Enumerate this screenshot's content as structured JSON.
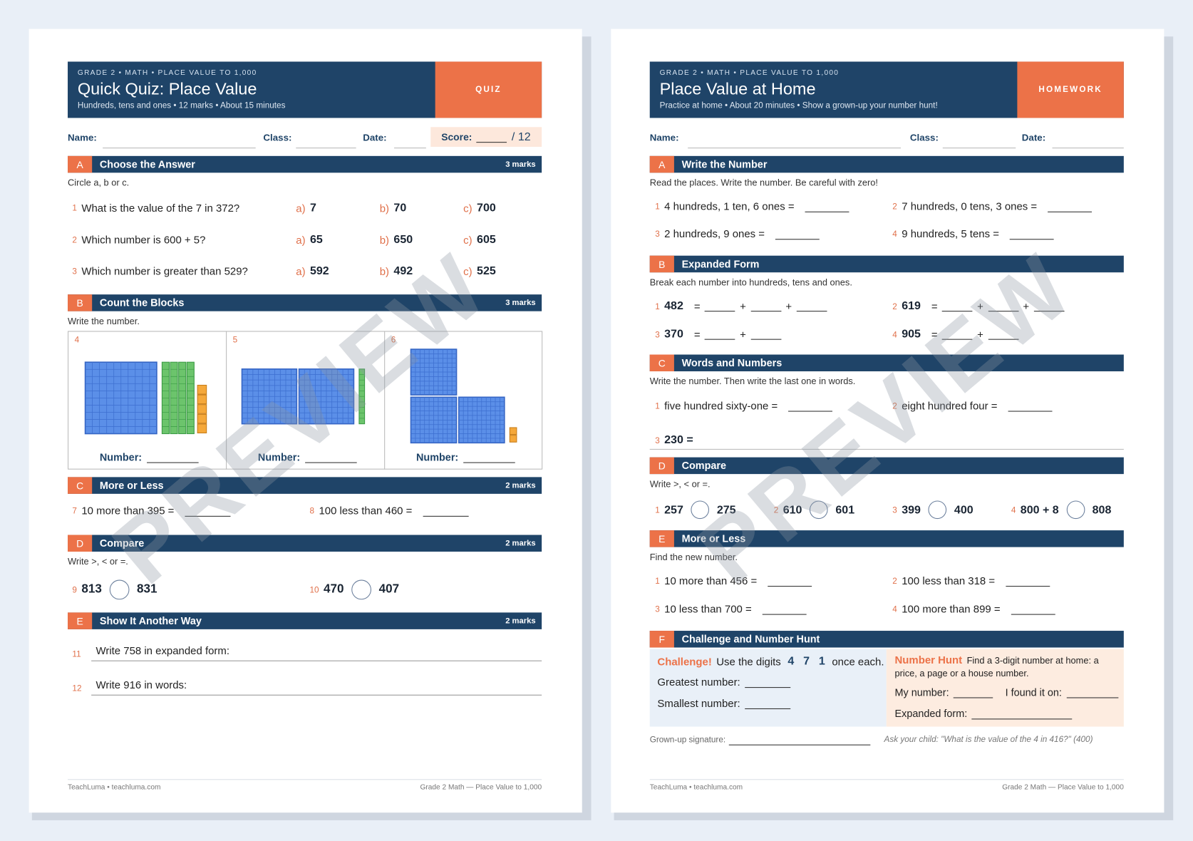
{
  "watermark": "PREVIEW",
  "quiz": {
    "header": {
      "eyebrow": "GRADE 2 • MATH • PLACE VALUE TO 1,000",
      "title": "Quick Quiz: Place Value",
      "subtitle": "Hundreds, tens and ones • 12 marks • About 15 minutes",
      "badge": "QUIZ"
    },
    "fields": {
      "name": "Name:",
      "class": "Class:",
      "date": "Date:",
      "score": "Score:",
      "score_total": "/ 12"
    },
    "section_a": {
      "letter": "A",
      "title": "Choose the Answer",
      "marks": "3 marks",
      "instruction": "Circle a, b or c.",
      "questions": [
        {
          "number": "1",
          "text": "What is the value of the 7 in 372?",
          "options": [
            {
              "letter": "a)",
              "text": "7"
            },
            {
              "letter": "b)",
              "text": "70"
            },
            {
              "letter": "c)",
              "text": "700"
            }
          ]
        },
        {
          "number": "2",
          "text": "Which number is 600 + 5?",
          "options": [
            {
              "letter": "a)",
              "text": "65"
            },
            {
              "letter": "b)",
              "text": "650"
            },
            {
              "letter": "c)",
              "text": "605"
            }
          ]
        },
        {
          "number": "3",
          "text": "Which number is greater than 529?",
          "options": [
            {
              "letter": "a)",
              "text": "592"
            },
            {
              "letter": "b)",
              "text": "492"
            },
            {
              "letter": "c)",
              "text": "525"
            }
          ]
        }
      ]
    },
    "section_b": {
      "letter": "B",
      "title": "Count the Blocks",
      "marks": "3 marks",
      "instruction": "Write the number.",
      "boxes": [
        {
          "number": "4",
          "hundreds": 1,
          "tens": 4,
          "ones": 5,
          "label": "Number:"
        },
        {
          "number": "5",
          "hundreds": 2,
          "tens": 1,
          "ones": 0,
          "label": "Number:"
        },
        {
          "number": "6",
          "hundreds": 3,
          "tens": 0,
          "ones": 2,
          "label": "Number:"
        }
      ]
    },
    "section_c": {
      "letter": "C",
      "title": "More or Less",
      "marks": "2 marks",
      "items": [
        {
          "number": "7",
          "text": "10 more than 395  ="
        },
        {
          "number": "8",
          "text": "100 less than 460  ="
        }
      ]
    },
    "section_d": {
      "letter": "D",
      "title": "Compare",
      "marks": "2 marks",
      "instruction": "Write >, < or =.",
      "items": [
        {
          "number": "9",
          "left": "813",
          "right": "831"
        },
        {
          "number": "10",
          "left": "470",
          "right": "407"
        }
      ]
    },
    "section_e": {
      "letter": "E",
      "title": "Show It Another Way",
      "marks": "2 marks",
      "items": [
        {
          "number": "11",
          "text": "Write 758 in expanded form:"
        },
        {
          "number": "12",
          "text": "Write 916 in words:"
        }
      ]
    },
    "footer": {
      "left": "TeachLuma • teachluma.com",
      "right": "Grade 2 Math — Place Value to 1,000"
    }
  },
  "homework": {
    "header": {
      "eyebrow": "GRADE 2 • MATH • PLACE VALUE TO 1,000",
      "title": "Place Value at Home",
      "subtitle": "Practice at home • About 20 minutes • Show a grown-up your number hunt!",
      "badge": "HOMEWORK"
    },
    "fields": {
      "name": "Name:",
      "class": "Class:",
      "date": "Date:"
    },
    "section_a": {
      "letter": "A",
      "title": "Write the Number",
      "instruction": "Read the places. Write the number. Be careful with zero!",
      "items": [
        {
          "number": "1",
          "text": "4 hundreds, 1 ten, 6 ones  ="
        },
        {
          "number": "2",
          "text": "7 hundreds, 0 tens, 3 ones  ="
        },
        {
          "number": "3",
          "text": "2 hundreds, 9 ones  ="
        },
        {
          "number": "4",
          "text": "9 hundreds, 5 tens  ="
        }
      ]
    },
    "section_b": {
      "letter": "B",
      "title": "Expanded Form",
      "instruction": "Break each number into hundreds, tens and ones.",
      "items": [
        {
          "number": "1",
          "value": "482",
          "signs": [
            "=",
            "+",
            "+"
          ]
        },
        {
          "number": "2",
          "value": "619",
          "signs": [
            "=",
            "+",
            "+"
          ]
        },
        {
          "number": "3",
          "value": "370",
          "signs": [
            "=",
            "+"
          ]
        },
        {
          "number": "4",
          "value": "905",
          "signs": [
            "=",
            "+"
          ]
        }
      ]
    },
    "section_c": {
      "letter": "C",
      "title": "Words and Numbers",
      "instruction": "Write the number. Then write the last one in words.",
      "items": [
        {
          "number": "1",
          "text": "five hundred sixty-one  ="
        },
        {
          "number": "2",
          "text": "eight hundred four  ="
        },
        {
          "number": "3",
          "text": "230  ="
        }
      ]
    },
    "section_d": {
      "letter": "D",
      "title": "Compare",
      "instruction": "Write >, < or =.",
      "items": [
        {
          "number": "1",
          "left": "257",
          "right": "275"
        },
        {
          "number": "2",
          "left": "610",
          "right": "601"
        },
        {
          "number": "3",
          "left": "399",
          "right": "400"
        },
        {
          "number": "4",
          "left": "800 + 8",
          "right": "808"
        }
      ]
    },
    "section_e": {
      "letter": "E",
      "title": "More or Less",
      "instruction": "Find the new number.",
      "items": [
        {
          "number": "1",
          "text": "10 more than 456  ="
        },
        {
          "number": "2",
          "text": "100 less than 318  ="
        },
        {
          "number": "3",
          "text": "10 less than 700  ="
        },
        {
          "number": "4",
          "text": "100 more than 899  ="
        }
      ]
    },
    "section_f": {
      "letter": "F",
      "title": "Challenge and Number Hunt",
      "challenge": {
        "label": "Challenge!",
        "text": "Use the digits",
        "digits": [
          "4",
          "7",
          "1"
        ],
        "after": "once each.",
        "greatest": "Greatest number:",
        "smallest": "Smallest number:"
      },
      "hunt": {
        "label": "Number Hunt",
        "text": "Find a 3-digit number at home: a price, a page or a house number.",
        "my_number": "My number:",
        "found": "I found it on:",
        "expanded": "Expanded form:"
      }
    },
    "signature": "Grown-up signature:",
    "tip": "Ask your child: \"What is the value of the 4 in 416?\"  (400)",
    "footer": {
      "left": "TeachLuma • teachluma.com",
      "right": "Grade 2 Math — Place Value to 1,000"
    }
  }
}
